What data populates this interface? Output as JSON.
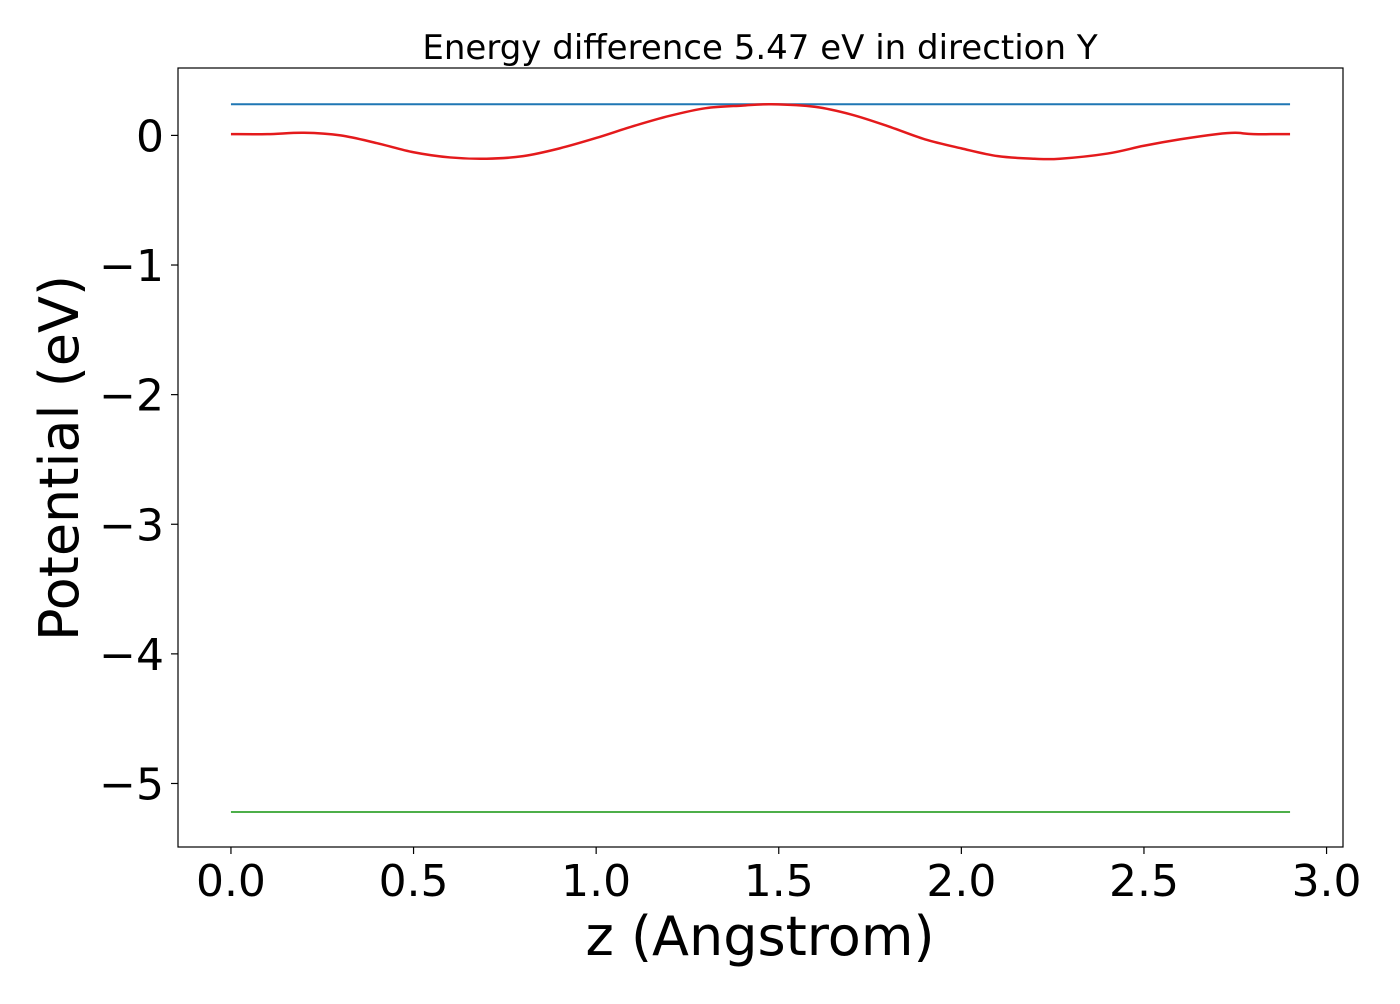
{
  "chart_data": {
    "type": "line",
    "title": "Energy difference 5.47 eV in direction Y",
    "xlabel": "z (Angstrom)",
    "ylabel": "Potential (eV)",
    "xlim": [
      -0.145,
      3.045
    ],
    "ylim": [
      -5.49,
      0.52
    ],
    "xticks": [
      0.0,
      0.5,
      1.0,
      1.5,
      2.0,
      2.5,
      3.0
    ],
    "xtick_labels": [
      "0.0",
      "0.5",
      "1.0",
      "1.5",
      "2.0",
      "2.5",
      "3.0"
    ],
    "yticks": [
      0,
      -1,
      -2,
      -3,
      -4,
      -5
    ],
    "ytick_labels": [
      "0",
      "−1",
      "−2",
      "−3",
      "−4",
      "−5"
    ],
    "grid": false,
    "legend": "none",
    "series": [
      {
        "color": "#1f77b4",
        "x": [
          0.0,
          2.9
        ],
        "y": [
          0.24,
          0.24
        ]
      },
      {
        "color": "#e41a1c",
        "x": [
          0.0,
          0.1,
          0.2,
          0.3,
          0.4,
          0.5,
          0.6,
          0.7,
          0.8,
          0.9,
          1.0,
          1.1,
          1.2,
          1.3,
          1.4,
          1.48,
          1.6,
          1.7,
          1.8,
          1.9,
          2.0,
          2.1,
          2.2,
          2.27,
          2.4,
          2.5,
          2.6,
          2.7,
          2.75,
          2.8,
          2.9
        ],
        "y": [
          0.01,
          0.01,
          0.02,
          0.0,
          -0.06,
          -0.13,
          -0.17,
          -0.18,
          -0.16,
          -0.1,
          -0.02,
          0.07,
          0.15,
          0.21,
          0.23,
          0.24,
          0.22,
          0.16,
          0.07,
          -0.03,
          -0.1,
          -0.16,
          -0.18,
          -0.18,
          -0.14,
          -0.08,
          -0.03,
          0.01,
          0.02,
          0.01,
          0.01
        ]
      },
      {
        "color": "#4daf4a",
        "x": [
          0.0,
          2.9
        ],
        "y": [
          -5.22,
          -5.22
        ]
      }
    ]
  }
}
